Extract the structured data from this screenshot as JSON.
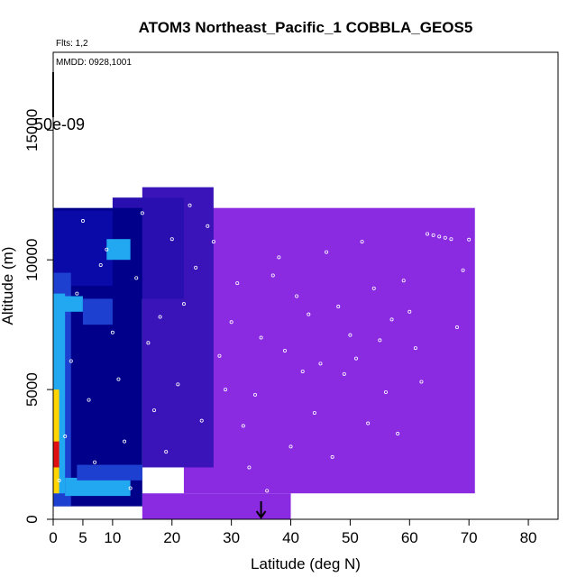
{
  "chart_data": {
    "type": "heatmap",
    "title": "ATOM3 Northeast_Pacific_1 COBBLA_GEOS5",
    "annotations": {
      "flights": "Flts: 1,2",
      "dates": "MMDD: 0928,1001",
      "colorbar_value": "50e-09"
    },
    "xlabel": "Latitude (deg N)",
    "ylabel": "Altitude (m)",
    "xlim": [
      0,
      85
    ],
    "ylim": [
      0,
      18000
    ],
    "x_ticks": [
      0,
      5,
      10,
      20,
      30,
      40,
      50,
      60,
      70,
      80
    ],
    "x_tick_labels": [
      "0",
      "5",
      "10",
      "20",
      "30",
      "40",
      "50",
      "60",
      "70",
      "80"
    ],
    "y_ticks": [
      0,
      5000,
      10000,
      15000
    ],
    "y_tick_labels": [
      "0",
      "5000",
      "10000",
      "15000"
    ],
    "arrow_latitude": 35,
    "colors": {
      "background_field": "#8a2be2",
      "deep_blue": "#00008b",
      "mid_blue": "#1e40d0",
      "light_blue": "#22a8f0",
      "yellow": "#ffd400",
      "red": "#e01010",
      "marker": "#ffffff"
    },
    "field_regions": [
      {
        "color": "#8a2be2",
        "lat": [
          22,
          71
        ],
        "alt": [
          1000,
          12000
        ]
      },
      {
        "color": "#8a2be2",
        "lat": [
          15,
          40
        ],
        "alt": [
          0,
          1000
        ]
      },
      {
        "color": "#3a14b8",
        "lat": [
          15,
          27
        ],
        "alt": [
          2000,
          12800
        ]
      },
      {
        "color": "#2a0fb0",
        "lat": [
          10,
          22
        ],
        "alt": [
          8500,
          12400
        ]
      },
      {
        "color": "#00008b",
        "lat": [
          0,
          15
        ],
        "alt": [
          500,
          12000
        ]
      },
      {
        "color": "#0a0aa8",
        "lat": [
          0,
          10
        ],
        "alt": [
          9000,
          11900
        ]
      },
      {
        "color": "#1e40d0",
        "lat": [
          0,
          3
        ],
        "alt": [
          500,
          9500
        ]
      },
      {
        "color": "#22a8f0",
        "lat": [
          0,
          2
        ],
        "alt": [
          1000,
          8700
        ]
      },
      {
        "color": "#22a8f0",
        "lat": [
          2,
          13
        ],
        "alt": [
          900,
          1600
        ]
      },
      {
        "color": "#1e40d0",
        "lat": [
          4,
          15
        ],
        "alt": [
          1500,
          2100
        ]
      },
      {
        "color": "#22a8f0",
        "lat": [
          0,
          5
        ],
        "alt": [
          8000,
          8600
        ]
      },
      {
        "color": "#1e40d0",
        "lat": [
          5,
          10
        ],
        "alt": [
          7500,
          8500
        ]
      },
      {
        "color": "#22a8f0",
        "lat": [
          9,
          13
        ],
        "alt": [
          10000,
          10800
        ]
      },
      {
        "color": "#ffd400",
        "lat": [
          0,
          1
        ],
        "alt": [
          1000,
          5000
        ]
      },
      {
        "color": "#e01010",
        "lat": [
          0,
          1
        ],
        "alt": [
          2000,
          3000
        ]
      }
    ],
    "sample_points": [
      [
        1,
        1500
      ],
      [
        2,
        3200
      ],
      [
        3,
        6100
      ],
      [
        4,
        8700
      ],
      [
        5,
        11500
      ],
      [
        6,
        4600
      ],
      [
        7,
        2200
      ],
      [
        8,
        9800
      ],
      [
        9,
        10400
      ],
      [
        10,
        7200
      ],
      [
        11,
        5400
      ],
      [
        12,
        3000
      ],
      [
        13,
        1200
      ],
      [
        14,
        9300
      ],
      [
        15,
        11800
      ],
      [
        16,
        6800
      ],
      [
        17,
        4200
      ],
      [
        18,
        7800
      ],
      [
        19,
        2600
      ],
      [
        20,
        10800
      ],
      [
        21,
        5200
      ],
      [
        22,
        8300
      ],
      [
        23,
        12100
      ],
      [
        24,
        9700
      ],
      [
        25,
        3800
      ],
      [
        26,
        11300
      ],
      [
        27,
        10700
      ],
      [
        28,
        6300
      ],
      [
        29,
        5000
      ],
      [
        30,
        7600
      ],
      [
        31,
        9100
      ],
      [
        32,
        3600
      ],
      [
        33,
        2000
      ],
      [
        34,
        4800
      ],
      [
        35,
        7000
      ],
      [
        36,
        1100
      ],
      [
        37,
        9400
      ],
      [
        38,
        10100
      ],
      [
        39,
        6500
      ],
      [
        40,
        2800
      ],
      [
        41,
        8600
      ],
      [
        42,
        5700
      ],
      [
        43,
        7900
      ],
      [
        44,
        4100
      ],
      [
        45,
        6000
      ],
      [
        46,
        10300
      ],
      [
        47,
        2400
      ],
      [
        48,
        8200
      ],
      [
        49,
        5600
      ],
      [
        50,
        7100
      ],
      [
        51,
        6200
      ],
      [
        52,
        10700
      ],
      [
        53,
        3700
      ],
      [
        54,
        8900
      ],
      [
        55,
        6900
      ],
      [
        56,
        4900
      ],
      [
        57,
        7700
      ],
      [
        58,
        3300
      ],
      [
        59,
        9200
      ],
      [
        60,
        8000
      ],
      [
        61,
        6600
      ],
      [
        62,
        5300
      ],
      [
        63,
        11000
      ],
      [
        64,
        10950
      ],
      [
        65,
        10900
      ],
      [
        66,
        10850
      ],
      [
        67,
        10800
      ],
      [
        68,
        7400
      ],
      [
        69,
        9600
      ],
      [
        70,
        10780
      ]
    ]
  }
}
